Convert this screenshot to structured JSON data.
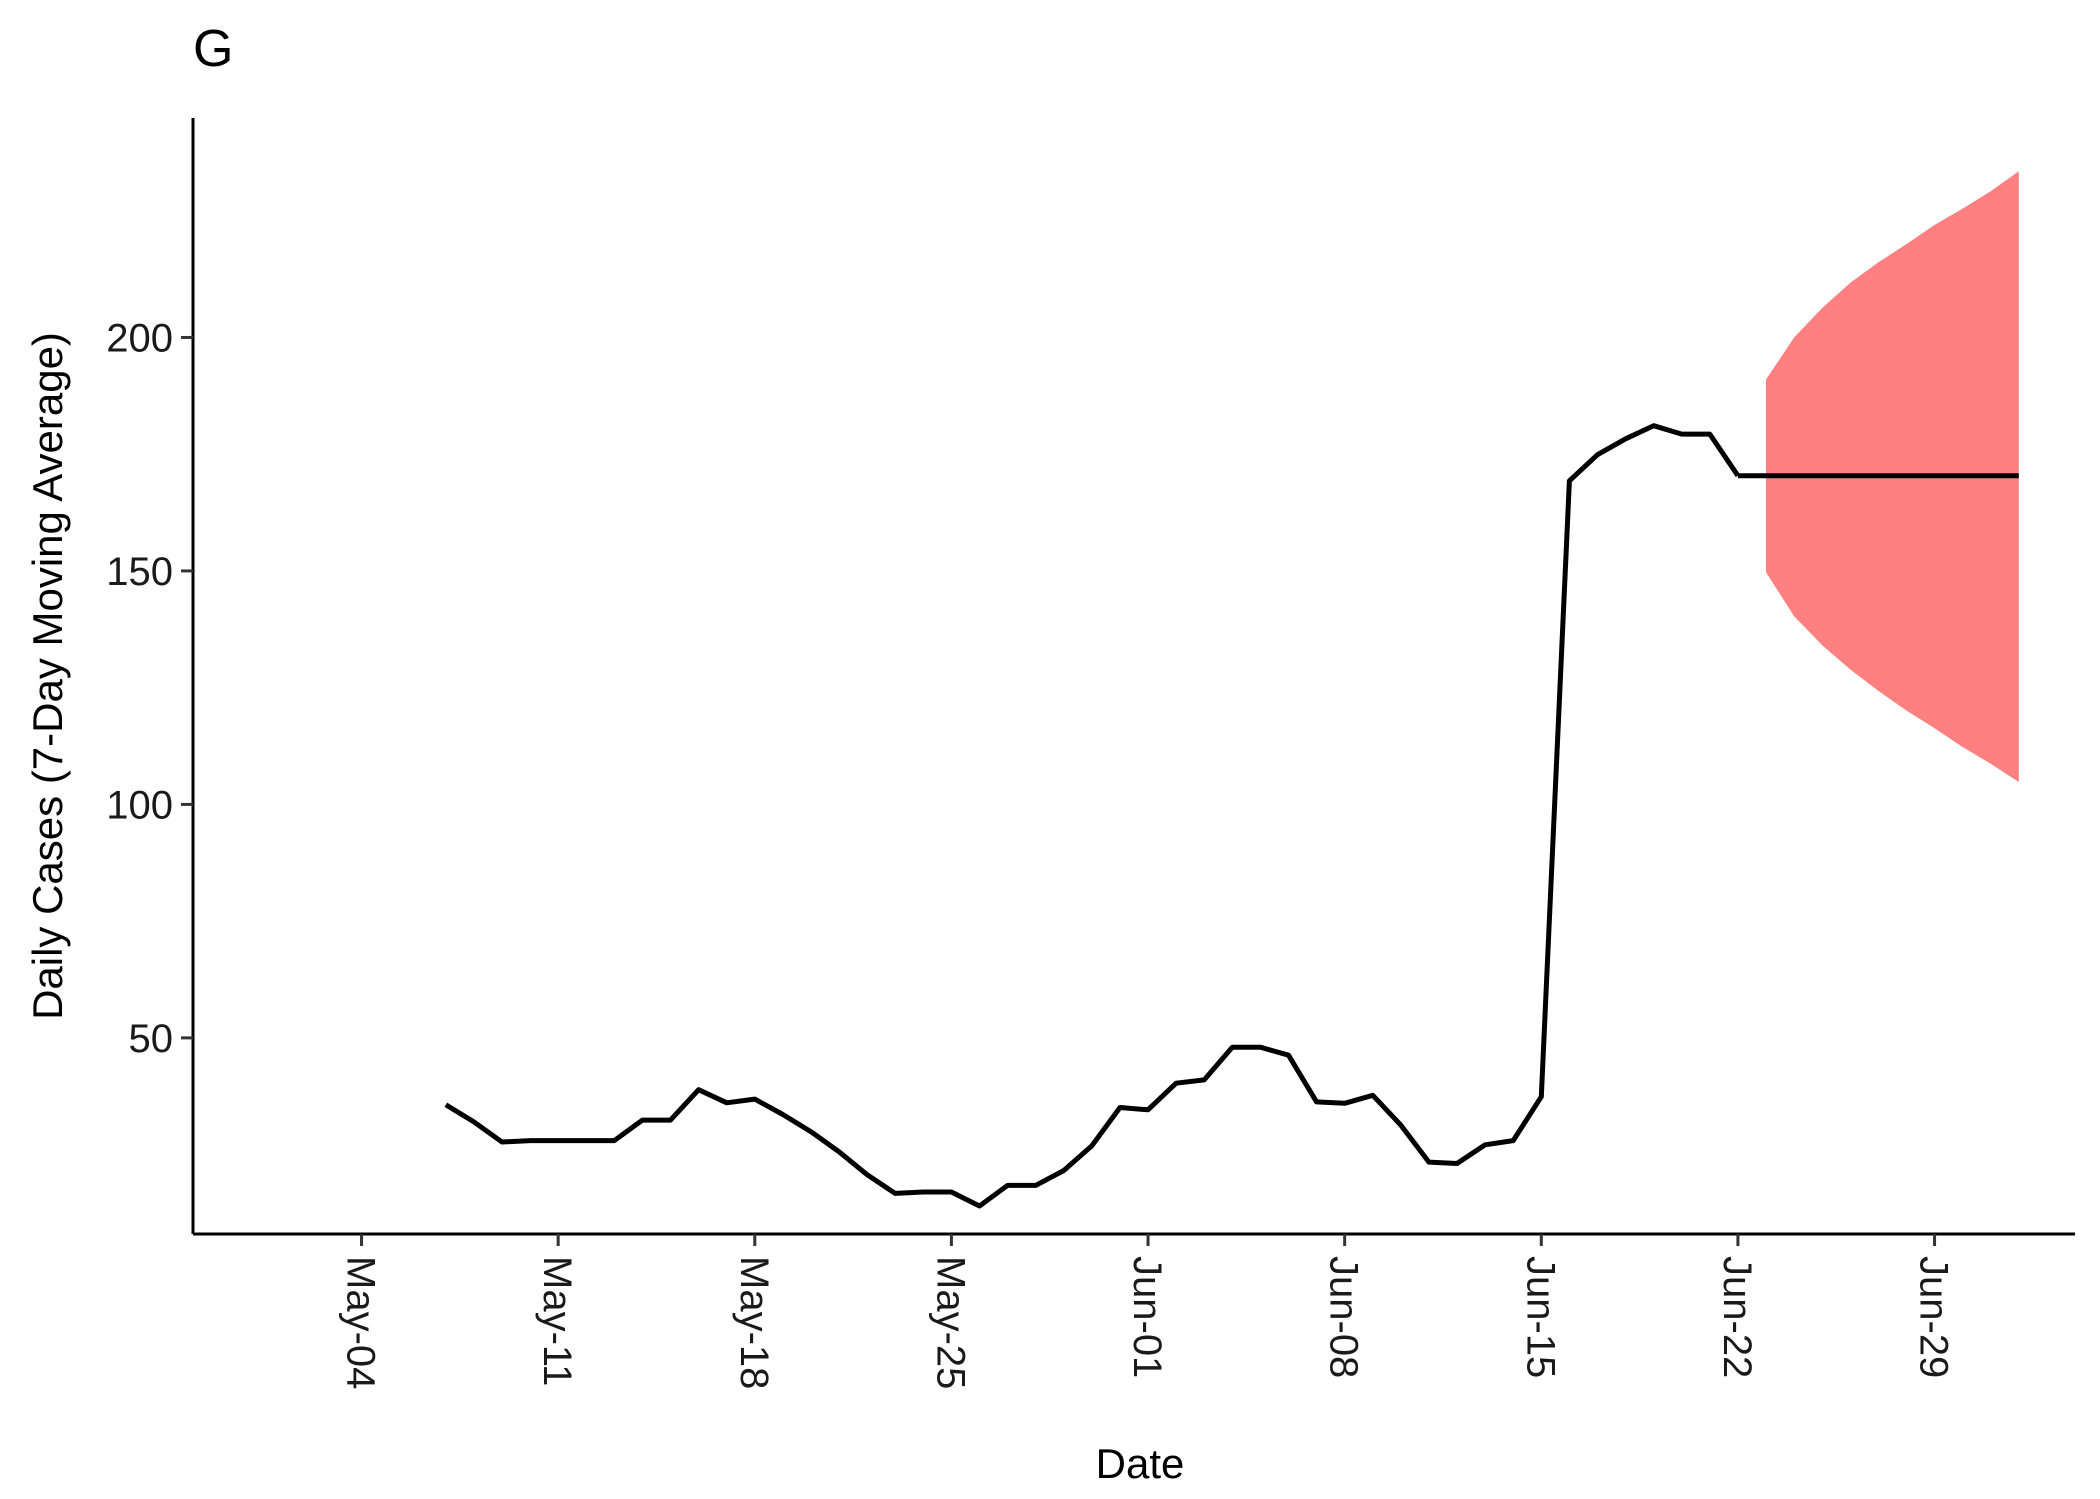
{
  "chart_data": {
    "type": "line",
    "panel_label": "G",
    "xlabel": "Date",
    "ylabel": "Daily Cases (7-Day Moving Average)",
    "x_ticks": [
      {
        "date": "2020-05-04",
        "label": "May-04"
      },
      {
        "date": "2020-05-11",
        "label": "May-11"
      },
      {
        "date": "2020-05-18",
        "label": "May-18"
      },
      {
        "date": "2020-05-25",
        "label": "May-25"
      },
      {
        "date": "2020-06-01",
        "label": "Jun-01"
      },
      {
        "date": "2020-06-08",
        "label": "Jun-08"
      },
      {
        "date": "2020-06-15",
        "label": "Jun-15"
      },
      {
        "date": "2020-06-22",
        "label": "Jun-22"
      },
      {
        "date": "2020-06-29",
        "label": "Jun-29"
      }
    ],
    "y_ticks": [
      {
        "value": 50,
        "label": "50"
      },
      {
        "value": 100,
        "label": "100"
      },
      {
        "value": 150,
        "label": "150"
      },
      {
        "value": 200,
        "label": "200"
      }
    ],
    "xlim": [
      "2020-04-28",
      "2020-07-04"
    ],
    "ylim": [
      8,
      247
    ],
    "grid": false,
    "line_color": "#000000",
    "band_color": "#FF8080",
    "series": [
      {
        "x": [
          "2020-05-07",
          "2020-05-08",
          "2020-05-09",
          "2020-05-10",
          "2020-05-11",
          "2020-05-12",
          "2020-05-13",
          "2020-05-14",
          "2020-05-15",
          "2020-05-16",
          "2020-05-17",
          "2020-05-18",
          "2020-05-19",
          "2020-05-20",
          "2020-05-21",
          "2020-05-22",
          "2020-05-23",
          "2020-05-24",
          "2020-05-25",
          "2020-05-26",
          "2020-05-27",
          "2020-05-28",
          "2020-05-29",
          "2020-05-30",
          "2020-05-31",
          "2020-06-01",
          "2020-06-02",
          "2020-06-03",
          "2020-06-04",
          "2020-06-05",
          "2020-06-06",
          "2020-06-07",
          "2020-06-08",
          "2020-06-09",
          "2020-06-10",
          "2020-06-11",
          "2020-06-12",
          "2020-06-13",
          "2020-06-14",
          "2020-06-15",
          "2020-06-16",
          "2020-06-17",
          "2020-06-18",
          "2020-06-19",
          "2020-06-20",
          "2020-06-21",
          "2020-06-22"
        ],
        "values": [
          35.7,
          32,
          27.7,
          28,
          28,
          28,
          28,
          32.4,
          32.4,
          38.9,
          36.1,
          36.9,
          33.6,
          29.9,
          25.6,
          20.7,
          16.7,
          17,
          17,
          14,
          18.4,
          18.4,
          21.6,
          26.9,
          35.1,
          34.6,
          40.3,
          41,
          48,
          48,
          46.3,
          36.3,
          36,
          37.7,
          31.3,
          23.4,
          23.1,
          27.1,
          28,
          37.4,
          169.3,
          174.9,
          178.3,
          181.1,
          179.3,
          179.3,
          170.4
        ]
      },
      {
        "x": [
          "2020-06-22",
          "2020-07-02"
        ],
        "values": [
          170.4,
          170.4
        ]
      }
    ],
    "band": {
      "x": [
        "2020-06-23",
        "2020-06-24",
        "2020-06-25",
        "2020-06-26",
        "2020-06-27",
        "2020-06-28",
        "2020-06-29",
        "2020-06-30",
        "2020-07-01",
        "2020-07-02"
      ],
      "upper": [
        191,
        200,
        206.3,
        211.7,
        216.1,
        220,
        224.1,
        227.6,
        231.3,
        235.6
      ],
      "lower": [
        149.7,
        140.3,
        134.1,
        128.9,
        124.3,
        120.1,
        116.3,
        112.3,
        108.7,
        104.8
      ]
    }
  }
}
